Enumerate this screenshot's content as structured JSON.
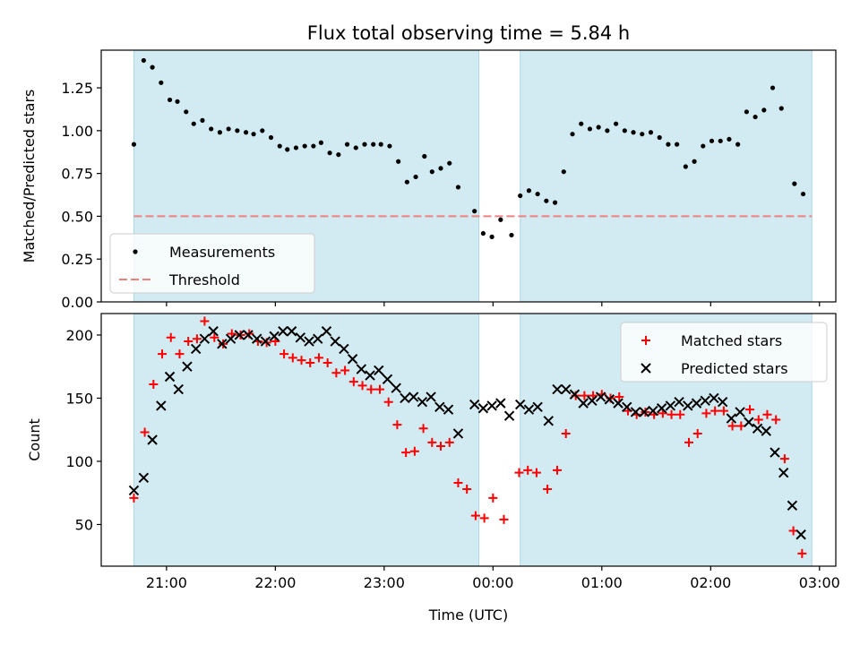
{
  "chart_data": {
    "title": "Flux total observing time = 5.84 h",
    "xlabel": "Time (UTC)",
    "x_ticks": [
      "21:00",
      "22:00",
      "23:00",
      "00:00",
      "01:00",
      "02:00",
      "03:00"
    ],
    "x_tick_hours": [
      21,
      22,
      23,
      24,
      25,
      26,
      27
    ],
    "x_range_hours": [
      20.4,
      27.15
    ],
    "colors": {
      "shade": "#add8e6",
      "measurement": "#000000",
      "threshold": "#f08080",
      "matched": "#ff0000",
      "predicted": "#000000"
    },
    "shaded_intervals_hours": [
      [
        20.7,
        23.87
      ],
      [
        24.25,
        26.93
      ]
    ],
    "panels": [
      {
        "type": "scatter",
        "ylabel": "Matched/Predicted stars",
        "ylim": [
          0.0,
          1.47
        ],
        "y_ticks": [
          "0.00",
          "0.25",
          "0.50",
          "0.75",
          "1.00",
          "1.25"
        ],
        "y_tick_values": [
          0.0,
          0.25,
          0.5,
          0.75,
          1.0,
          1.25
        ],
        "legend": {
          "placement": "lower-left",
          "entries": [
            "Measurements",
            "Threshold"
          ]
        },
        "threshold": 0.5,
        "threshold_range_hours": [
          20.7,
          26.93
        ],
        "measurements": [
          [
            20.7,
            0.92
          ],
          [
            20.79,
            1.41
          ],
          [
            20.87,
            1.37
          ],
          [
            20.95,
            1.28
          ],
          [
            21.03,
            1.18
          ],
          [
            21.1,
            1.17
          ],
          [
            21.18,
            1.11
          ],
          [
            21.25,
            1.04
          ],
          [
            21.33,
            1.06
          ],
          [
            21.41,
            1.01
          ],
          [
            21.49,
            0.99
          ],
          [
            21.57,
            1.01
          ],
          [
            21.65,
            1.0
          ],
          [
            21.73,
            0.99
          ],
          [
            21.8,
            0.98
          ],
          [
            21.88,
            1.0
          ],
          [
            21.96,
            0.96
          ],
          [
            22.04,
            0.91
          ],
          [
            22.11,
            0.89
          ],
          [
            22.19,
            0.9
          ],
          [
            22.27,
            0.91
          ],
          [
            22.35,
            0.91
          ],
          [
            22.42,
            0.93
          ],
          [
            22.5,
            0.87
          ],
          [
            22.58,
            0.86
          ],
          [
            22.66,
            0.92
          ],
          [
            22.74,
            0.9
          ],
          [
            22.82,
            0.92
          ],
          [
            22.9,
            0.92
          ],
          [
            22.97,
            0.92
          ],
          [
            23.05,
            0.91
          ],
          [
            23.13,
            0.82
          ],
          [
            23.21,
            0.7
          ],
          [
            23.29,
            0.73
          ],
          [
            23.37,
            0.85
          ],
          [
            23.44,
            0.76
          ],
          [
            23.52,
            0.78
          ],
          [
            23.6,
            0.81
          ],
          [
            23.68,
            0.67
          ],
          [
            23.83,
            0.53
          ],
          [
            23.91,
            0.4
          ],
          [
            23.99,
            0.38
          ],
          [
            24.07,
            0.48
          ],
          [
            24.17,
            0.39
          ],
          [
            24.25,
            0.62
          ],
          [
            24.33,
            0.65
          ],
          [
            24.41,
            0.63
          ],
          [
            24.49,
            0.59
          ],
          [
            24.57,
            0.58
          ],
          [
            24.65,
            0.76
          ],
          [
            24.73,
            0.98
          ],
          [
            24.81,
            1.04
          ],
          [
            24.89,
            1.01
          ],
          [
            24.97,
            1.02
          ],
          [
            25.05,
            1.0
          ],
          [
            25.13,
            1.04
          ],
          [
            25.21,
            1.0
          ],
          [
            25.29,
            0.99
          ],
          [
            25.37,
            0.98
          ],
          [
            25.45,
            0.99
          ],
          [
            25.53,
            0.96
          ],
          [
            25.61,
            0.92
          ],
          [
            25.69,
            0.92
          ],
          [
            25.77,
            0.79
          ],
          [
            25.85,
            0.82
          ],
          [
            25.93,
            0.91
          ],
          [
            26.01,
            0.94
          ],
          [
            26.09,
            0.94
          ],
          [
            26.17,
            0.95
          ],
          [
            26.25,
            0.92
          ],
          [
            26.33,
            1.11
          ],
          [
            26.41,
            1.08
          ],
          [
            26.49,
            1.12
          ],
          [
            26.57,
            1.25
          ],
          [
            26.65,
            1.13
          ],
          [
            26.77,
            0.69
          ],
          [
            26.85,
            0.63
          ]
        ]
      },
      {
        "type": "scatter",
        "ylabel": "Count",
        "ylim": [
          17,
          217
        ],
        "y_ticks": [
          "50",
          "100",
          "150",
          "200"
        ],
        "y_tick_values": [
          50,
          100,
          150,
          200
        ],
        "legend": {
          "placement": "upper-right",
          "entries": [
            "Matched stars",
            "Predicted stars"
          ]
        },
        "series": [
          {
            "name": "Matched stars",
            "marker": "plus",
            "points": [
              [
                20.7,
                71
              ],
              [
                20.8,
                123
              ],
              [
                20.88,
                161
              ],
              [
                20.96,
                185
              ],
              [
                21.04,
                198
              ],
              [
                21.12,
                185
              ],
              [
                21.2,
                195
              ],
              [
                21.28,
                197
              ],
              [
                21.35,
                211
              ],
              [
                21.44,
                198
              ],
              [
                21.52,
                193
              ],
              [
                21.6,
                201
              ],
              [
                21.68,
                200
              ],
              [
                21.76,
                201
              ],
              [
                21.84,
                195
              ],
              [
                21.92,
                194
              ],
              [
                22.0,
                195
              ],
              [
                22.08,
                185
              ],
              [
                22.16,
                182
              ],
              [
                22.24,
                180
              ],
              [
                22.32,
                178
              ],
              [
                22.4,
                182
              ],
              [
                22.48,
                178
              ],
              [
                22.56,
                170
              ],
              [
                22.64,
                172
              ],
              [
                22.72,
                163
              ],
              [
                22.8,
                160
              ],
              [
                22.88,
                157
              ],
              [
                22.96,
                157
              ],
              [
                23.04,
                147
              ],
              [
                23.12,
                129
              ],
              [
                23.2,
                107
              ],
              [
                23.28,
                108
              ],
              [
                23.36,
                126
              ],
              [
                23.44,
                115
              ],
              [
                23.52,
                112
              ],
              [
                23.6,
                115
              ],
              [
                23.68,
                83
              ],
              [
                23.76,
                78
              ],
              [
                23.84,
                57
              ],
              [
                23.92,
                55
              ],
              [
                24.0,
                71
              ],
              [
                24.1,
                54
              ],
              [
                24.24,
                91
              ],
              [
                24.32,
                93
              ],
              [
                24.4,
                91
              ],
              [
                24.5,
                78
              ],
              [
                24.59,
                93
              ],
              [
                24.67,
                122
              ],
              [
                24.76,
                152
              ],
              [
                24.84,
                152
              ],
              [
                24.92,
                152
              ],
              [
                25.0,
                153
              ],
              [
                25.08,
                150
              ],
              [
                25.16,
                151
              ],
              [
                25.24,
                140
              ],
              [
                25.32,
                137
              ],
              [
                25.4,
                139
              ],
              [
                25.48,
                137
              ],
              [
                25.56,
                138
              ],
              [
                25.64,
                137
              ],
              [
                25.72,
                137
              ],
              [
                25.8,
                115
              ],
              [
                25.88,
                122
              ],
              [
                25.96,
                138
              ],
              [
                26.04,
                140
              ],
              [
                26.12,
                140
              ],
              [
                26.2,
                128
              ],
              [
                26.28,
                128
              ],
              [
                26.36,
                141
              ],
              [
                26.44,
                133
              ],
              [
                26.52,
                137
              ],
              [
                26.6,
                133
              ],
              [
                26.68,
                102
              ],
              [
                26.76,
                45
              ],
              [
                26.84,
                27
              ]
            ]
          },
          {
            "name": "Predicted stars",
            "marker": "x",
            "points": [
              [
                20.7,
                77
              ],
              [
                20.79,
                87
              ],
              [
                20.87,
                117
              ],
              [
                20.95,
                144
              ],
              [
                21.03,
                167
              ],
              [
                21.11,
                157
              ],
              [
                21.19,
                175
              ],
              [
                21.27,
                189
              ],
              [
                21.35,
                197
              ],
              [
                21.43,
                203
              ],
              [
                21.51,
                193
              ],
              [
                21.59,
                197
              ],
              [
                21.67,
                200
              ],
              [
                21.75,
                200
              ],
              [
                21.83,
                197
              ],
              [
                21.91,
                195
              ],
              [
                21.99,
                199
              ],
              [
                22.07,
                203
              ],
              [
                22.15,
                203
              ],
              [
                22.23,
                198
              ],
              [
                22.31,
                195
              ],
              [
                22.39,
                197
              ],
              [
                22.47,
                203
              ],
              [
                22.55,
                195
              ],
              [
                22.63,
                189
              ],
              [
                22.71,
                181
              ],
              [
                22.79,
                173
              ],
              [
                22.87,
                168
              ],
              [
                22.95,
                172
              ],
              [
                23.03,
                165
              ],
              [
                23.11,
                158
              ],
              [
                23.19,
                150
              ],
              [
                23.27,
                151
              ],
              [
                23.35,
                147
              ],
              [
                23.43,
                151
              ],
              [
                23.51,
                143
              ],
              [
                23.59,
                141
              ],
              [
                23.68,
                122
              ],
              [
                23.83,
                145
              ],
              [
                23.91,
                142
              ],
              [
                23.99,
                144
              ],
              [
                24.07,
                146
              ],
              [
                24.15,
                136
              ],
              [
                24.25,
                145
              ],
              [
                24.33,
                141
              ],
              [
                24.41,
                143
              ],
              [
                24.51,
                132
              ],
              [
                24.59,
                157
              ],
              [
                24.67,
                157
              ],
              [
                24.75,
                153
              ],
              [
                24.83,
                146
              ],
              [
                24.91,
                148
              ],
              [
                24.99,
                151
              ],
              [
                25.07,
                149
              ],
              [
                25.15,
                146
              ],
              [
                25.23,
                143
              ],
              [
                25.31,
                139
              ],
              [
                25.39,
                139
              ],
              [
                25.47,
                140
              ],
              [
                25.55,
                142
              ],
              [
                25.63,
                144
              ],
              [
                25.71,
                147
              ],
              [
                25.79,
                144
              ],
              [
                25.87,
                146
              ],
              [
                25.95,
                148
              ],
              [
                26.03,
                150
              ],
              [
                26.11,
                147
              ],
              [
                26.19,
                134
              ],
              [
                26.27,
                139
              ],
              [
                26.35,
                131
              ],
              [
                26.43,
                126
              ],
              [
                26.51,
                124
              ],
              [
                26.59,
                107
              ],
              [
                26.67,
                91
              ],
              [
                26.75,
                65
              ],
              [
                26.83,
                42
              ]
            ]
          }
        ]
      }
    ]
  }
}
